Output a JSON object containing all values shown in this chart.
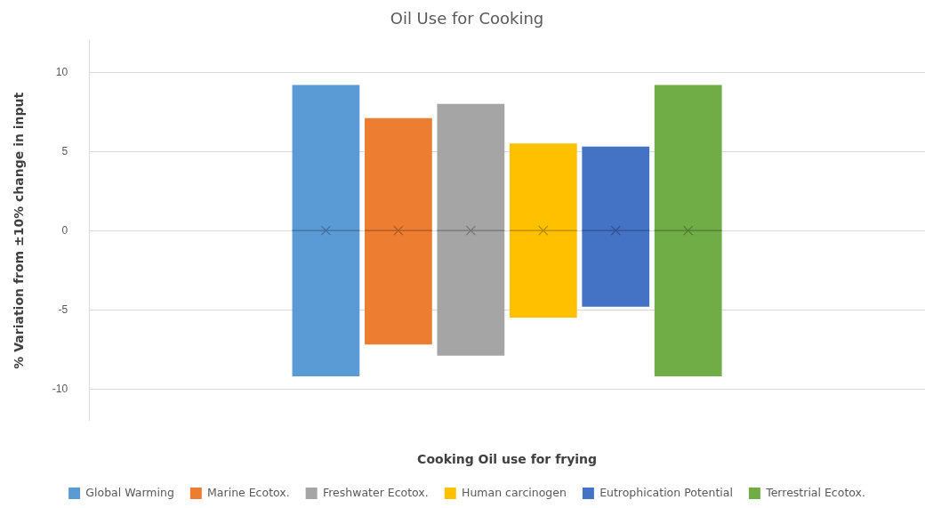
{
  "chart_data": {
    "type": "box",
    "title": "Oil Use for Cooking",
    "xlabel": "Cooking Oil use for frying",
    "ylabel": "% Variation from ±10% change in input",
    "categories": [
      null
    ],
    "series": [
      {
        "name": "Global Warming",
        "color": "#5b9bd5",
        "boxes": [
          {
            "low": -9.2,
            "q1": -9.2,
            "median": 0,
            "q3": 9.2,
            "high": 9.2,
            "mean": 0
          }
        ]
      },
      {
        "name": "Marine Ecotox.",
        "color": "#ed7d31",
        "boxes": [
          {
            "low": -7.2,
            "q1": -7.2,
            "median": 0,
            "q3": 7.1,
            "high": 7.1,
            "mean": 0
          }
        ]
      },
      {
        "name": "Freshwater Ecotox.",
        "color": "#a5a5a5",
        "boxes": [
          {
            "low": -7.9,
            "q1": -7.9,
            "median": 0,
            "q3": 8.0,
            "high": 8.0,
            "mean": 0
          }
        ]
      },
      {
        "name": "Human carcinogen",
        "color": "#ffc000",
        "boxes": [
          {
            "low": -5.5,
            "q1": -5.5,
            "median": 0,
            "q3": 5.5,
            "high": 5.5,
            "mean": 0
          }
        ]
      },
      {
        "name": "Eutrophication Potential",
        "color": "#4472c4",
        "boxes": [
          {
            "low": -4.8,
            "q1": -4.8,
            "median": 0,
            "q3": 5.3,
            "high": 5.3,
            "mean": 0
          }
        ]
      },
      {
        "name": "Terrestrial Ecotox.",
        "color": "#70ad47",
        "boxes": [
          {
            "low": -9.2,
            "q1": -9.2,
            "median": 0,
            "q3": 9.2,
            "high": 9.2,
            "mean": 0
          }
        ]
      }
    ],
    "ylim": [
      -12,
      12
    ],
    "yticks": [
      -10,
      -5,
      0,
      5,
      10
    ],
    "grid": "y",
    "legend": "bottom",
    "marker": "cross"
  }
}
